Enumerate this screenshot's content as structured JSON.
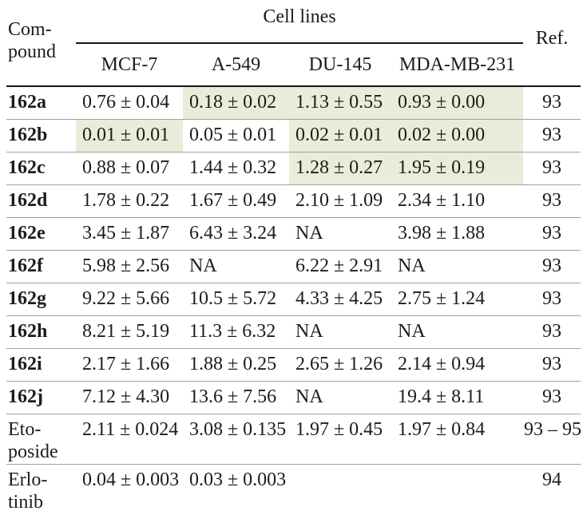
{
  "table": {
    "colors": {
      "highlight": "#e9ecd9",
      "rule_dark": "#151515",
      "rule_light": "#a0a0a0",
      "text": "#1c1c1c"
    },
    "header": {
      "compound": "Com-\npound",
      "group": "Cell lines",
      "columns": [
        "MCF-7",
        "A-549",
        "DU-145",
        "MDA-MB-231"
      ],
      "ref": "Ref."
    },
    "rows": [
      {
        "compound": "162a",
        "bold": true,
        "tall": false,
        "values": [
          "0.76 ± 0.04",
          "0.18 ± 0.02",
          "1.13 ± 0.55",
          "0.93 ± 0.00"
        ],
        "highlight": [
          false,
          true,
          true,
          true
        ],
        "ref": "93"
      },
      {
        "compound": "162b",
        "bold": true,
        "tall": false,
        "values": [
          "0.01 ± 0.01",
          "0.05 ± 0.01",
          "0.02 ± 0.01",
          "0.02 ± 0.00"
        ],
        "highlight": [
          true,
          false,
          true,
          true
        ],
        "ref": "93"
      },
      {
        "compound": "162c",
        "bold": true,
        "tall": false,
        "values": [
          "0.88 ± 0.07",
          "1.44 ± 0.32",
          "1.28 ± 0.27",
          "1.95 ± 0.19"
        ],
        "highlight": [
          false,
          false,
          true,
          true
        ],
        "ref": "93"
      },
      {
        "compound": "162d",
        "bold": true,
        "tall": false,
        "values": [
          "1.78 ± 0.22",
          "1.67 ± 0.49",
          "2.10 ± 1.09",
          "2.34 ± 1.10"
        ],
        "highlight": [
          false,
          false,
          false,
          false
        ],
        "ref": "93"
      },
      {
        "compound": "162e",
        "bold": true,
        "tall": false,
        "values": [
          "3.45 ± 1.87",
          "6.43 ± 3.24",
          "NA",
          "3.98 ± 1.88"
        ],
        "highlight": [
          false,
          false,
          false,
          false
        ],
        "ref": "93"
      },
      {
        "compound": "162f",
        "bold": true,
        "tall": false,
        "values": [
          "5.98 ± 2.56",
          "NA",
          "6.22 ± 2.91",
          "NA"
        ],
        "highlight": [
          false,
          false,
          false,
          false
        ],
        "ref": "93"
      },
      {
        "compound": "162g",
        "bold": true,
        "tall": false,
        "values": [
          "9.22 ± 5.66",
          "10.5 ± 5.72",
          "4.33 ± 4.25",
          "2.75 ± 1.24"
        ],
        "highlight": [
          false,
          false,
          false,
          false
        ],
        "ref": "93"
      },
      {
        "compound": "162h",
        "bold": true,
        "tall": false,
        "values": [
          "8.21 ± 5.19",
          "11.3 ± 6.32",
          "NA",
          "NA"
        ],
        "highlight": [
          false,
          false,
          false,
          false
        ],
        "ref": "93"
      },
      {
        "compound": "162i",
        "bold": true,
        "tall": false,
        "values": [
          "2.17 ± 1.66",
          "1.88 ± 0.25",
          "2.65 ± 1.26",
          "2.14 ± 0.94"
        ],
        "highlight": [
          false,
          false,
          false,
          false
        ],
        "ref": "93"
      },
      {
        "compound": "162j",
        "bold": true,
        "tall": false,
        "values": [
          "7.12 ± 4.30",
          "13.6 ± 7.56",
          "NA",
          "19.4 ± 8.11"
        ],
        "highlight": [
          false,
          false,
          false,
          false
        ],
        "ref": "93"
      },
      {
        "compound": "Eto-\nposide",
        "bold": false,
        "tall": true,
        "values": [
          "2.11 ± 0.024",
          "3.08 ± 0.135",
          "1.97 ± 0.45",
          "1.97 ± 0.84"
        ],
        "highlight": [
          false,
          false,
          false,
          false
        ],
        "ref": "93 – 95"
      },
      {
        "compound": "Erlo-\ntinib",
        "bold": false,
        "tall": true,
        "values": [
          "0.04 ± 0.003",
          "0.03 ± 0.003",
          "",
          ""
        ],
        "highlight": [
          false,
          false,
          false,
          false
        ],
        "ref": "94"
      }
    ]
  }
}
